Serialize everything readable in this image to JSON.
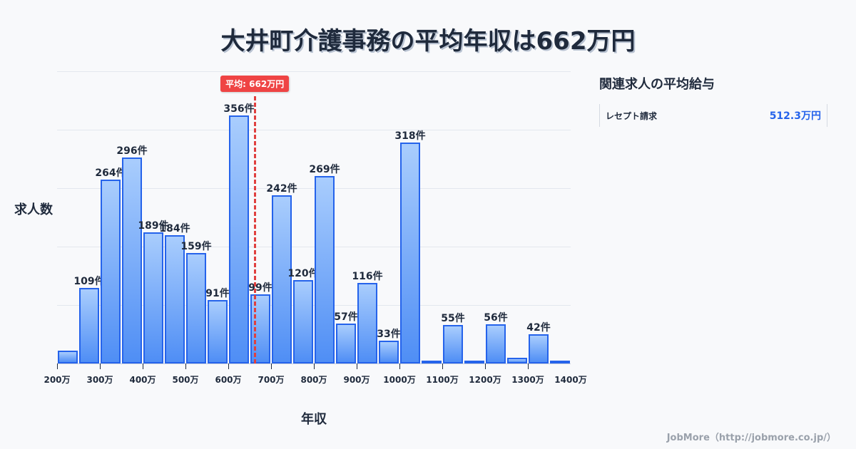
{
  "title": "大井町介護事務の平均年収は662万円",
  "chart_data": {
    "type": "bar",
    "title": "大井町介護事務の平均年収は662万円",
    "xlabel": "年収",
    "ylabel": "求人数",
    "x_ticks": [
      "200万",
      "300万",
      "400万",
      "500万",
      "600万",
      "700万",
      "800万",
      "900万",
      "1000万",
      "1100万",
      "1200万",
      "1300万",
      "1400万"
    ],
    "bin_width": 50,
    "bins": [
      {
        "start": 200,
        "value": 18,
        "label": ""
      },
      {
        "start": 250,
        "value": 109,
        "label": "109件"
      },
      {
        "start": 300,
        "value": 264,
        "label": "264件"
      },
      {
        "start": 350,
        "value": 296,
        "label": "296件"
      },
      {
        "start": 400,
        "value": 189,
        "label": "189件"
      },
      {
        "start": 450,
        "value": 184,
        "label": "184件"
      },
      {
        "start": 500,
        "value": 159,
        "label": "159件"
      },
      {
        "start": 550,
        "value": 91,
        "label": "91件"
      },
      {
        "start": 600,
        "value": 356,
        "label": "356件"
      },
      {
        "start": 650,
        "value": 99,
        "label": "99件"
      },
      {
        "start": 700,
        "value": 242,
        "label": "242件"
      },
      {
        "start": 750,
        "value": 120,
        "label": "120件"
      },
      {
        "start": 800,
        "value": 269,
        "label": "269件"
      },
      {
        "start": 850,
        "value": 57,
        "label": "57件"
      },
      {
        "start": 900,
        "value": 116,
        "label": "116件"
      },
      {
        "start": 950,
        "value": 33,
        "label": "33件"
      },
      {
        "start": 1000,
        "value": 318,
        "label": "318件"
      },
      {
        "start": 1050,
        "value": 2,
        "label": ""
      },
      {
        "start": 1100,
        "value": 55,
        "label": "55件"
      },
      {
        "start": 1150,
        "value": 2,
        "label": ""
      },
      {
        "start": 1200,
        "value": 56,
        "label": "56件"
      },
      {
        "start": 1250,
        "value": 8,
        "label": ""
      },
      {
        "start": 1300,
        "value": 42,
        "label": "42件"
      },
      {
        "start": 1350,
        "value": 2,
        "label": ""
      }
    ],
    "xlim": [
      200,
      1400
    ],
    "ylim": [
      0,
      420
    ],
    "grid": true,
    "average": {
      "value": 662,
      "label": "平均: 662万円"
    }
  },
  "sidebar": {
    "title": "関連求人の平均給与",
    "items": [
      {
        "label": "レセプト請求",
        "value": "512.3万円"
      }
    ]
  },
  "footer": "JobMore（http://jobmore.co.jp/）",
  "colors": {
    "bar_border": "#2563eb",
    "bar_top": "#a9cdfd",
    "bar_bottom": "#4f8ef5",
    "average_line": "#e0403f",
    "accent_value": "#2563eb"
  }
}
